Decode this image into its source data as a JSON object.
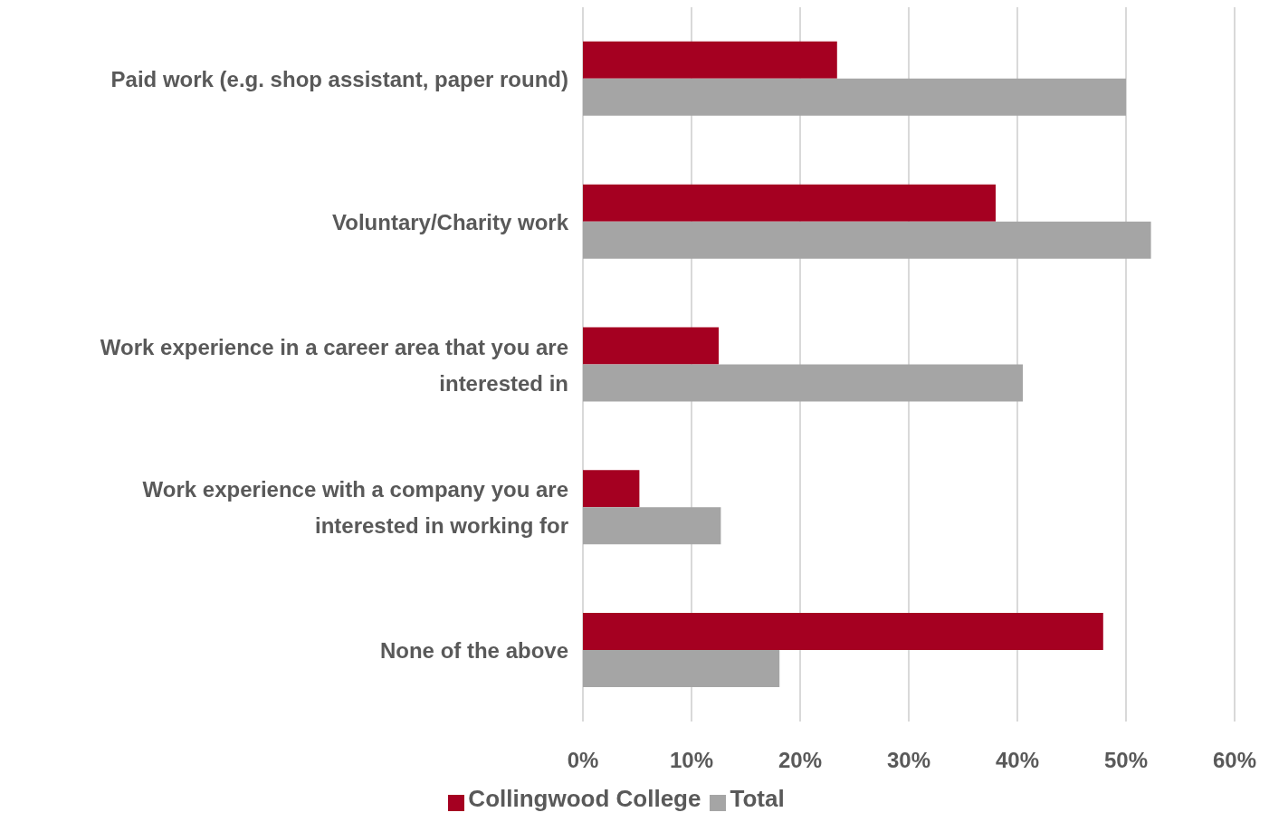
{
  "chart_data": {
    "type": "bar",
    "orientation": "horizontal",
    "categories": [
      "Paid work (e.g. shop assistant, paper round)",
      "Voluntary/Charity work",
      "Work experience in a career area that you are interested in",
      "Work experience with a company you are interested in working for",
      "None of the above"
    ],
    "series": [
      {
        "name": "Collingwood College",
        "color": "#a50021",
        "values": [
          23.4,
          38.0,
          12.5,
          5.2,
          47.9
        ]
      },
      {
        "name": "Total",
        "color": "#a5a5a5",
        "values": [
          50.0,
          52.3,
          40.5,
          12.7,
          18.1
        ]
      }
    ],
    "xlim": [
      0,
      60
    ],
    "xticks": [
      {
        "value": 0,
        "label": "0%"
      },
      {
        "value": 10,
        "label": "10%"
      },
      {
        "value": 20,
        "label": "20%"
      },
      {
        "value": 30,
        "label": "30%"
      },
      {
        "value": 40,
        "label": "40%"
      },
      {
        "value": 50,
        "label": "50%"
      },
      {
        "value": 60,
        "label": "60%"
      }
    ],
    "grid": "x",
    "legend": "bottom"
  }
}
